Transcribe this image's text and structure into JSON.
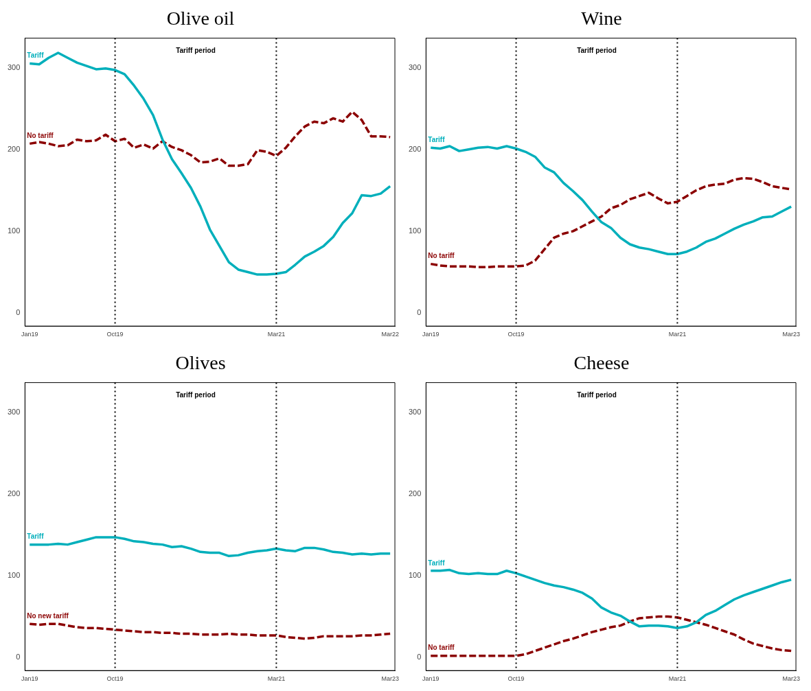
{
  "chart_data": [
    {
      "type": "line",
      "title": "Olive oil",
      "categories": [
        "Jan19",
        null,
        null,
        null,
        null,
        null,
        null,
        null,
        null,
        "Oct19",
        null,
        null,
        null,
        null,
        null,
        null,
        null,
        null,
        null,
        null,
        null,
        null,
        null,
        null,
        null,
        null,
        "Mar21",
        null,
        null,
        null,
        null,
        null,
        null,
        null,
        null,
        null,
        null,
        null,
        "Mar22"
      ],
      "series": [
        {
          "name": "Tariff",
          "color": "#00afbb",
          "line_style": "solid",
          "values": [
            305,
            304,
            312,
            318,
            312,
            306,
            302,
            298,
            299,
            297,
            292,
            278,
            262,
            242,
            212,
            188,
            171,
            153,
            130,
            102,
            82,
            62,
            53,
            50,
            47,
            47,
            48,
            50,
            59,
            69,
            75,
            82,
            93,
            110,
            122,
            144,
            143,
            146,
            155
          ]
        },
        {
          "name": "No tariff",
          "color": "#8b0000",
          "line_style": "dashed",
          "values": [
            207,
            209,
            207,
            204,
            205,
            212,
            210,
            211,
            218,
            210,
            213,
            202,
            206,
            201,
            210,
            203,
            199,
            193,
            184,
            185,
            189,
            180,
            180,
            182,
            199,
            197,
            192,
            202,
            216,
            228,
            234,
            232,
            238,
            234,
            246,
            236,
            216,
            216,
            215
          ]
        }
      ],
      "ylim": [
        -16,
        336
      ],
      "yticks": [
        0,
        100,
        200,
        300
      ],
      "grid": false,
      "legend": false,
      "marker": "none",
      "ref_lines": [
        {
          "axis": "x",
          "value": "Oct19",
          "line_style": "dotted",
          "color": "#000000"
        },
        {
          "axis": "x",
          "value": "Mar21",
          "line_style": "dotted",
          "color": "#000000"
        }
      ],
      "annotations": [
        "Tariff period"
      ]
    },
    {
      "type": "line",
      "title": "Wine",
      "categories": [
        "Jan19",
        null,
        null,
        null,
        null,
        null,
        null,
        null,
        null,
        "Oct19",
        null,
        null,
        null,
        null,
        null,
        null,
        null,
        null,
        null,
        null,
        null,
        null,
        null,
        null,
        null,
        null,
        "Mar21",
        null,
        null,
        null,
        null,
        null,
        null,
        null,
        null,
        null,
        null,
        null,
        "Mar23"
      ],
      "series": [
        {
          "name": "Tariff",
          "color": "#00afbb",
          "line_style": "solid",
          "values": [
            202,
            201,
            204,
            198,
            200,
            202,
            203,
            201,
            204,
            201,
            197,
            191,
            178,
            172,
            159,
            149,
            138,
            124,
            111,
            104,
            92,
            84,
            80,
            78,
            75,
            72,
            72,
            75,
            80,
            87,
            91,
            97,
            103,
            108,
            112,
            117,
            118,
            124,
            130
          ]
        },
        {
          "name": "No tariff",
          "color": "#8b0000",
          "line_style": "dashed",
          "values": [
            60,
            58,
            57,
            57,
            57,
            56,
            56,
            57,
            57,
            57,
            58,
            64,
            78,
            92,
            97,
            100,
            106,
            112,
            118,
            128,
            132,
            139,
            143,
            147,
            140,
            134,
            136,
            143,
            150,
            155,
            157,
            158,
            163,
            165,
            164,
            160,
            155,
            153,
            151
          ]
        }
      ],
      "ylim": [
        -16,
        336
      ],
      "yticks": [
        0,
        100,
        200,
        300
      ],
      "grid": false,
      "legend": false,
      "marker": "none",
      "ref_lines": [
        {
          "axis": "x",
          "value": "Oct19",
          "line_style": "dotted",
          "color": "#000000"
        },
        {
          "axis": "x",
          "value": "Mar21",
          "line_style": "dotted",
          "color": "#000000"
        }
      ],
      "annotations": [
        "Tariff period"
      ]
    },
    {
      "type": "line",
      "title": "Olives",
      "categories": [
        "Jan19",
        null,
        null,
        null,
        null,
        null,
        null,
        null,
        null,
        "Oct19",
        null,
        null,
        null,
        null,
        null,
        null,
        null,
        null,
        null,
        null,
        null,
        null,
        null,
        null,
        null,
        null,
        "Mar21",
        null,
        null,
        null,
        null,
        null,
        null,
        null,
        null,
        null,
        null,
        null,
        "Mar23"
      ],
      "series": [
        {
          "name": "Tariff",
          "color": "#00afbb",
          "line_style": "solid",
          "values": [
            138,
            138,
            138,
            139,
            138,
            141,
            144,
            147,
            147,
            147,
            145,
            142,
            141,
            139,
            138,
            135,
            136,
            133,
            129,
            128,
            128,
            124,
            125,
            128,
            130,
            131,
            133,
            131,
            130,
            134,
            134,
            132,
            129,
            128,
            126,
            127,
            126,
            127,
            127
          ]
        },
        {
          "name": "No new tariff",
          "color": "#8b0000",
          "line_style": "dashed",
          "values": [
            41,
            40,
            41,
            41,
            39,
            37,
            36,
            36,
            35,
            34,
            33,
            32,
            31,
            31,
            30,
            30,
            29,
            29,
            28,
            28,
            28,
            29,
            28,
            28,
            27,
            27,
            27,
            25,
            24,
            23,
            24,
            26,
            26,
            26,
            26,
            27,
            27,
            28,
            29
          ]
        }
      ],
      "ylim": [
        -16,
        336
      ],
      "yticks": [
        0,
        100,
        200,
        300
      ],
      "grid": false,
      "legend": false,
      "marker": "none",
      "ref_lines": [
        {
          "axis": "x",
          "value": "Oct19",
          "line_style": "dotted",
          "color": "#000000"
        },
        {
          "axis": "x",
          "value": "Mar21",
          "line_style": "dotted",
          "color": "#000000"
        }
      ],
      "annotations": [
        "Tariff period"
      ]
    },
    {
      "type": "line",
      "title": "Cheese",
      "categories": [
        "Jan19",
        null,
        null,
        null,
        null,
        null,
        null,
        null,
        null,
        "Oct19",
        null,
        null,
        null,
        null,
        null,
        null,
        null,
        null,
        null,
        null,
        null,
        null,
        null,
        null,
        null,
        null,
        "Mar21",
        null,
        null,
        null,
        null,
        null,
        null,
        null,
        null,
        null,
        null,
        null,
        "Mar23"
      ],
      "series": [
        {
          "name": "Tariff",
          "color": "#00afbb",
          "line_style": "solid",
          "values": [
            106,
            106,
            107,
            103,
            102,
            103,
            102,
            102,
            106,
            103,
            99,
            95,
            91,
            88,
            86,
            83,
            79,
            72,
            61,
            55,
            51,
            44,
            38,
            39,
            39,
            38,
            36,
            38,
            43,
            52,
            57,
            64,
            71,
            76,
            80,
            84,
            88,
            92,
            95
          ]
        },
        {
          "name": "No tariff",
          "color": "#8b0000",
          "line_style": "dashed",
          "values": [
            2,
            2,
            2,
            2,
            2,
            2,
            2,
            2,
            2,
            2,
            4,
            8,
            12,
            16,
            20,
            23,
            27,
            31,
            34,
            37,
            39,
            44,
            48,
            49,
            50,
            50,
            49,
            46,
            43,
            40,
            36,
            32,
            28,
            22,
            17,
            14,
            11,
            9,
            8
          ]
        }
      ],
      "ylim": [
        -16,
        336
      ],
      "yticks": [
        0,
        100,
        200,
        300
      ],
      "grid": false,
      "legend": false,
      "marker": "none",
      "ref_lines": [
        {
          "axis": "x",
          "value": "Oct19",
          "line_style": "dotted",
          "color": "#000000"
        },
        {
          "axis": "x",
          "value": "Mar21",
          "line_style": "dotted",
          "color": "#000000"
        }
      ],
      "annotations": [
        "Tariff period"
      ]
    }
  ]
}
